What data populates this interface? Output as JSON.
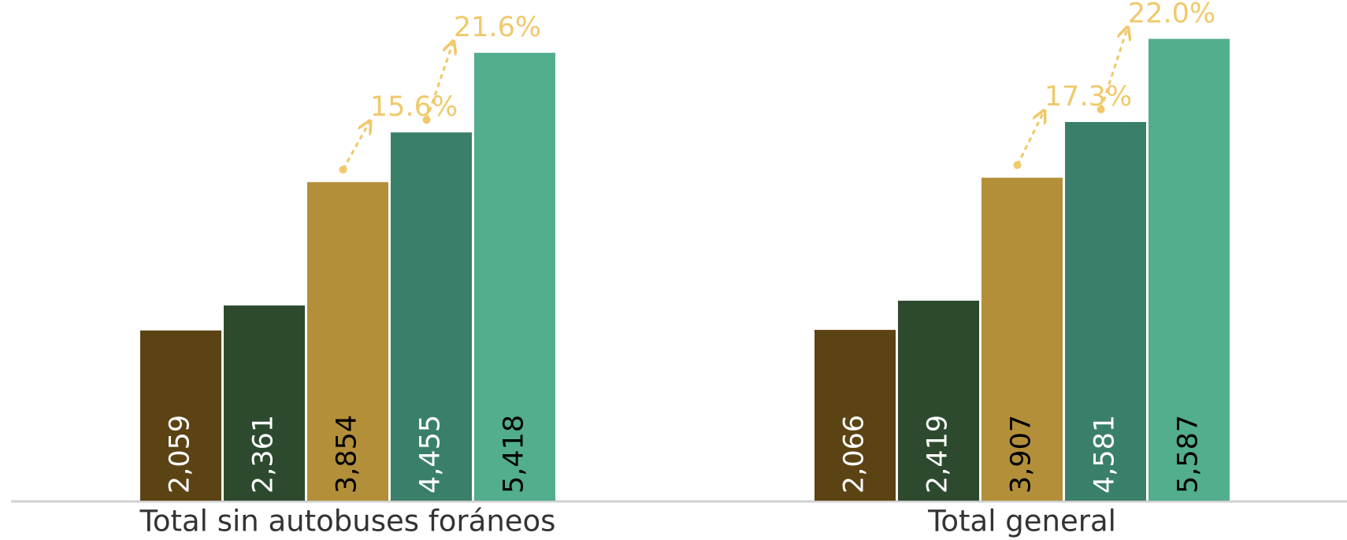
{
  "chart_data": {
    "type": "bar",
    "categories": [
      "Total sin autobuses foráneos",
      "Total general"
    ],
    "ylim": [
      0,
      6000
    ],
    "series": [
      {
        "color": "#5c4314",
        "label_color": "#ffffff",
        "values": [
          2059,
          2066
        ],
        "value_labels": [
          "2,059",
          "2,066"
        ]
      },
      {
        "color": "#2d4a2f",
        "label_color": "#ffffff",
        "values": [
          2361,
          2419
        ],
        "value_labels": [
          "2,361",
          "2,419"
        ]
      },
      {
        "color": "#b38f3a",
        "label_color": "#000000",
        "values": [
          3854,
          3907
        ],
        "value_labels": [
          "3,854",
          "3,907"
        ]
      },
      {
        "color": "#3a7f6a",
        "label_color": "#ffffff",
        "values": [
          4455,
          4581
        ],
        "value_labels": [
          "4,455",
          "4,581"
        ],
        "annotations": [
          "15.6%",
          "17.3%"
        ]
      },
      {
        "color": "#52ae8c",
        "label_color": "#000000",
        "values": [
          5418,
          5587
        ],
        "value_labels": [
          "5,418",
          "5,587"
        ],
        "annotations": [
          "21.6%",
          "22.0%"
        ]
      }
    ],
    "annotation_color": "#f0c96a"
  }
}
